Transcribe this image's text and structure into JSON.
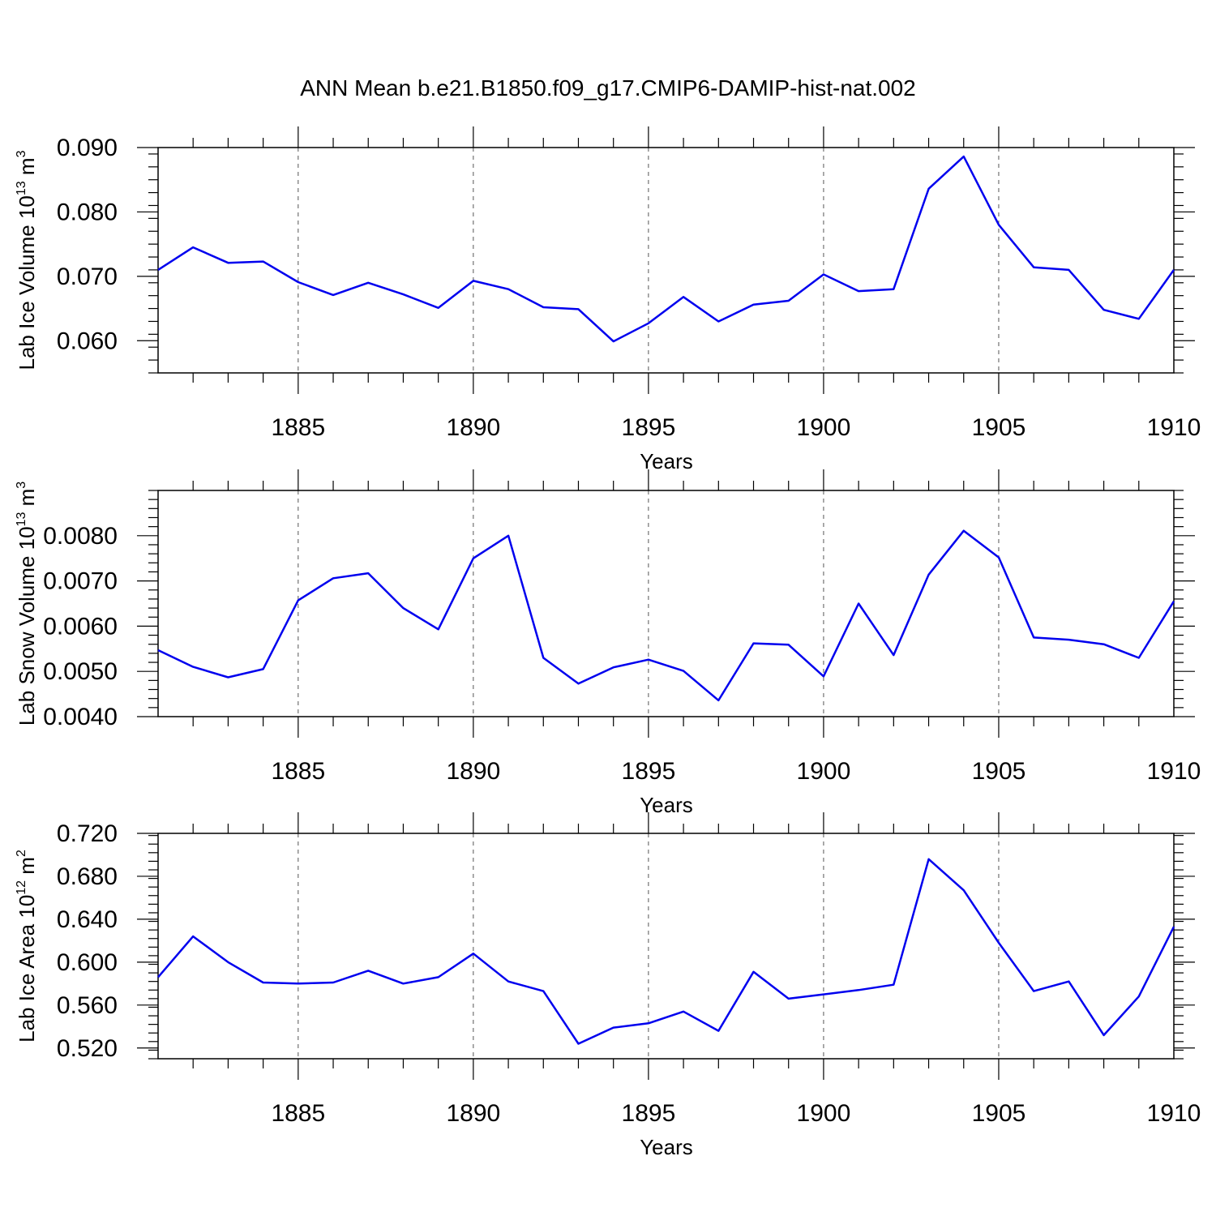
{
  "title": "ANN Mean b.e21.B1850.f09_g17.CMIP6-DAMIP-hist-nat.002",
  "colors": {
    "line": "#0000ee",
    "axis": "#000000",
    "grid": "#555555"
  },
  "chart_data": [
    {
      "type": "line",
      "xlabel": "Years",
      "ylabel_main": "Lab Ice Volume 10",
      "ylabel_exp": "13",
      "ylabel_unit": " m",
      "ylabel_unit_exp": "3",
      "xlim": [
        1881,
        1910
      ],
      "ylim": [
        0.055,
        0.09
      ],
      "xticks": [
        1885,
        1890,
        1895,
        1900,
        1905,
        1910
      ],
      "yticks": [
        0.06,
        0.07,
        0.08,
        0.09
      ],
      "ytick_labels": [
        "0.060",
        "0.070",
        "0.080",
        "0.090"
      ],
      "grid": "x-dashed",
      "x": [
        1881,
        1882,
        1883,
        1884,
        1885,
        1886,
        1887,
        1888,
        1889,
        1890,
        1891,
        1892,
        1893,
        1894,
        1895,
        1896,
        1897,
        1898,
        1899,
        1900,
        1901,
        1902,
        1903,
        1904,
        1905,
        1906,
        1907,
        1908,
        1909,
        1910
      ],
      "values": [
        0.071,
        0.0745,
        0.0721,
        0.0723,
        0.0691,
        0.0671,
        0.069,
        0.0672,
        0.0651,
        0.0693,
        0.068,
        0.0652,
        0.0649,
        0.0599,
        0.0627,
        0.0668,
        0.063,
        0.0656,
        0.0662,
        0.0703,
        0.0677,
        0.068,
        0.0836,
        0.0886,
        0.078,
        0.0714,
        0.071,
        0.0648,
        0.0634,
        0.071
      ]
    },
    {
      "type": "line",
      "xlabel": "Years",
      "ylabel_main": "Lab Snow Volume 10",
      "ylabel_exp": "13",
      "ylabel_unit": " m",
      "ylabel_unit_exp": "3",
      "xlim": [
        1881,
        1910
      ],
      "ylim": [
        0.004,
        0.009
      ],
      "xticks": [
        1885,
        1890,
        1895,
        1900,
        1905,
        1910
      ],
      "yticks": [
        0.004,
        0.005,
        0.006,
        0.007,
        0.008
      ],
      "ytick_labels": [
        "0.0040",
        "0.0050",
        "0.0060",
        "0.0070",
        "0.0080"
      ],
      "grid": "x-dashed",
      "x": [
        1881,
        1882,
        1883,
        1884,
        1885,
        1886,
        1887,
        1888,
        1889,
        1890,
        1891,
        1892,
        1893,
        1894,
        1895,
        1896,
        1897,
        1898,
        1899,
        1900,
        1901,
        1902,
        1903,
        1904,
        1905,
        1906,
        1907,
        1908,
        1909,
        1910
      ],
      "values": [
        0.00547,
        0.0051,
        0.00487,
        0.00505,
        0.00657,
        0.00706,
        0.00717,
        0.0064,
        0.00593,
        0.0075,
        0.008,
        0.0053,
        0.00473,
        0.00509,
        0.00526,
        0.00501,
        0.00436,
        0.00562,
        0.00559,
        0.00489,
        0.0065,
        0.00536,
        0.00714,
        0.00811,
        0.00752,
        0.00575,
        0.0057,
        0.0056,
        0.0053,
        0.00655
      ]
    },
    {
      "type": "line",
      "xlabel": "Years",
      "ylabel_main": "Lab Ice Area 10",
      "ylabel_exp": "12",
      "ylabel_unit": " m",
      "ylabel_unit_exp": "2",
      "xlim": [
        1881,
        1910
      ],
      "ylim": [
        0.51,
        0.72
      ],
      "xticks": [
        1885,
        1890,
        1895,
        1900,
        1905,
        1910
      ],
      "yticks": [
        0.52,
        0.56,
        0.6,
        0.64,
        0.68,
        0.72
      ],
      "ytick_labels": [
        "0.520",
        "0.560",
        "0.600",
        "0.640",
        "0.680",
        "0.720"
      ],
      "grid": "x-dashed",
      "x": [
        1881,
        1882,
        1883,
        1884,
        1885,
        1886,
        1887,
        1888,
        1889,
        1890,
        1891,
        1892,
        1893,
        1894,
        1895,
        1896,
        1897,
        1898,
        1899,
        1900,
        1901,
        1902,
        1903,
        1904,
        1905,
        1906,
        1907,
        1908,
        1909,
        1910
      ],
      "values": [
        0.586,
        0.624,
        0.6,
        0.581,
        0.58,
        0.581,
        0.592,
        0.58,
        0.586,
        0.608,
        0.582,
        0.573,
        0.524,
        0.539,
        0.543,
        0.554,
        0.536,
        0.591,
        0.566,
        0.57,
        0.574,
        0.579,
        0.696,
        0.667,
        0.618,
        0.573,
        0.582,
        0.532,
        0.568,
        0.633
      ]
    }
  ]
}
